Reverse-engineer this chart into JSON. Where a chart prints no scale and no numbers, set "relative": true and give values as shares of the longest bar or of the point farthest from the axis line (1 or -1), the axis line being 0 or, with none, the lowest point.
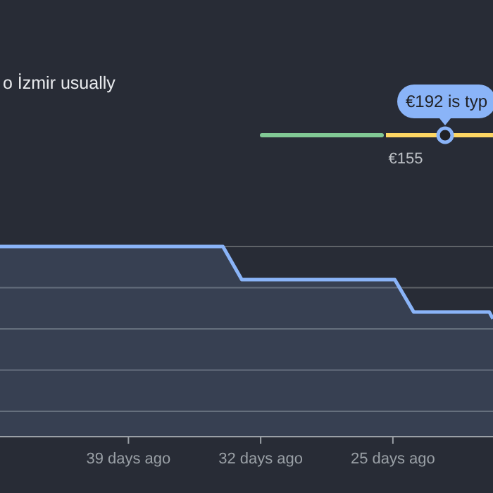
{
  "chart_data": {
    "type": "area",
    "title": "o İzmir usually",
    "relative": true,
    "x": [
      -45.8,
      -34,
      -33,
      -24.9,
      -23.9,
      -19.9,
      -19.7
    ],
    "series": [
      {
        "color": "#8ab4f8",
        "values": [
          1,
          1,
          0.826,
          0.826,
          0.656,
          0.656,
          0.62
        ]
      }
    ],
    "xlim": [
      -45.8,
      -19.7
    ],
    "xticks": [
      {
        "value": -39,
        "label": "39 days ago"
      },
      {
        "value": -32,
        "label": "32 days ago"
      },
      {
        "value": -25,
        "label": "25 days ago"
      }
    ],
    "grid": true,
    "annotations": [
      "€192 is typ",
      "€155"
    ]
  }
}
